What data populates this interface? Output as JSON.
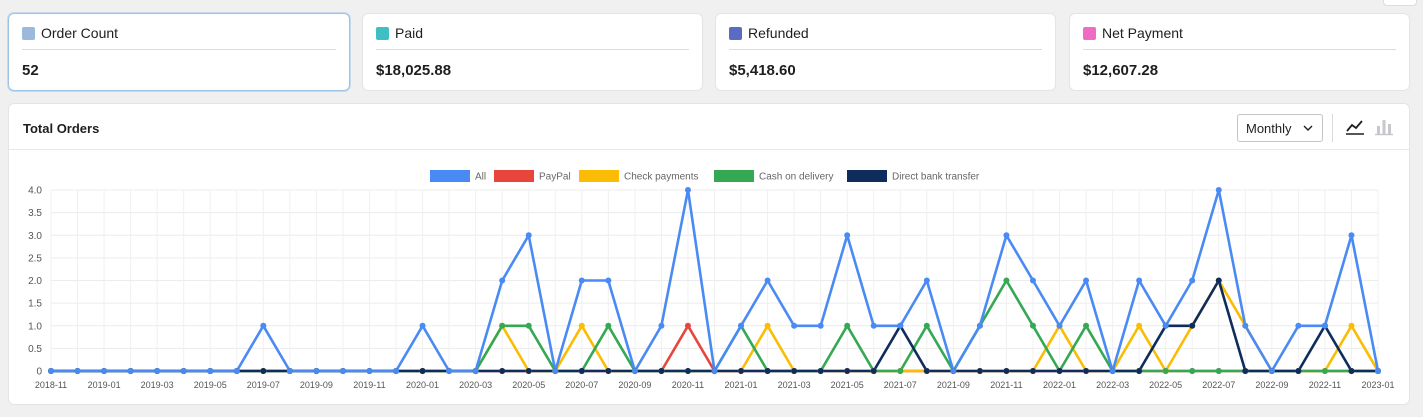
{
  "summary": [
    {
      "label": "Order Count",
      "value": "52",
      "color": "#9bb8dd",
      "active": true
    },
    {
      "label": "Paid",
      "value": "$18,025.88",
      "color": "#3fbfc4",
      "active": false
    },
    {
      "label": "Refunded",
      "value": "$5,418.60",
      "color": "#5a6bc4",
      "active": false
    },
    {
      "label": "Net Payment",
      "value": "$12,607.28",
      "color": "#f06cc4",
      "active": false
    }
  ],
  "panel": {
    "title": "Total Orders",
    "interval": "Monthly",
    "chart_type_options": [
      "line-chart-icon",
      "bar-chart-icon"
    ],
    "selected_chart_type": "line"
  },
  "chart_data": {
    "type": "line",
    "x": [
      "2018-11",
      "2018-12",
      "2019-01",
      "2019-02",
      "2019-03",
      "2019-04",
      "2019-05",
      "2019-06",
      "2019-07",
      "2019-08",
      "2019-09",
      "2019-10",
      "2019-11",
      "2019-12",
      "2020-01",
      "2020-02",
      "2020-03",
      "2020-04",
      "2020-05",
      "2020-06",
      "2020-07",
      "2020-08",
      "2020-09",
      "2020-10",
      "2020-11",
      "2020-12",
      "2021-01",
      "2021-02",
      "2021-03",
      "2021-04",
      "2021-05",
      "2021-06",
      "2021-07",
      "2021-08",
      "2021-09",
      "2021-10",
      "2021-11",
      "2021-12",
      "2022-01",
      "2022-02",
      "2022-03",
      "2022-04",
      "2022-05",
      "2022-06",
      "2022-07",
      "2022-08",
      "2022-09",
      "2022-10",
      "2022-11",
      "2022-12",
      "2023-01"
    ],
    "xticks": [
      "2018-11",
      "2019-01",
      "2019-03",
      "2019-05",
      "2019-07",
      "2019-09",
      "2019-11",
      "2020-01",
      "2020-03",
      "2020-05",
      "2020-07",
      "2020-09",
      "2020-11",
      "2021-01",
      "2021-03",
      "2021-05",
      "2021-07",
      "2021-09",
      "2021-11",
      "2022-01",
      "2022-03",
      "2022-05",
      "2022-07",
      "2022-09",
      "2022-11",
      "2023-01"
    ],
    "yticks": [
      "0",
      "0.5",
      "1.0",
      "1.5",
      "2.0",
      "2.5",
      "3.0",
      "3.5",
      "4.0"
    ],
    "ylim": [
      0,
      4
    ],
    "grid": true,
    "legend_position": "top",
    "series": [
      {
        "name": "All",
        "color": "#4a8af4",
        "values": [
          0,
          0,
          0,
          0,
          0,
          0,
          0,
          0,
          1,
          0,
          0,
          0,
          0,
          0,
          1,
          0,
          0,
          2,
          3,
          0,
          2,
          2,
          0,
          1,
          4,
          0,
          1,
          2,
          1,
          1,
          3,
          1,
          1,
          2,
          0,
          1,
          3,
          2,
          1,
          2,
          0,
          2,
          1,
          2,
          4,
          1,
          0,
          1,
          1,
          3,
          0
        ]
      },
      {
        "name": "PayPal",
        "color": "#e8453c",
        "values": [
          0,
          0,
          0,
          0,
          0,
          0,
          0,
          0,
          0,
          0,
          0,
          0,
          0,
          0,
          0,
          0,
          0,
          0,
          0,
          0,
          0,
          0,
          0,
          0,
          1,
          0,
          0,
          0,
          0,
          0,
          0,
          0,
          0,
          0,
          0,
          0,
          0,
          0,
          0,
          0,
          0,
          0,
          0,
          0,
          0,
          0,
          0,
          0,
          0,
          0,
          0
        ]
      },
      {
        "name": "Check payments",
        "color": "#fbbc04",
        "values": [
          0,
          0,
          0,
          0,
          0,
          0,
          0,
          0,
          0,
          0,
          0,
          0,
          0,
          0,
          0,
          0,
          0,
          1,
          0,
          0,
          1,
          0,
          0,
          0,
          0,
          0,
          0,
          1,
          0,
          0,
          0,
          0,
          0,
          0,
          0,
          0,
          0,
          0,
          1,
          0,
          0,
          1,
          0,
          1,
          2,
          1,
          0,
          0,
          0,
          1,
          0
        ]
      },
      {
        "name": "Cash on delivery",
        "color": "#34a853",
        "values": [
          0,
          0,
          0,
          0,
          0,
          0,
          0,
          0,
          0,
          0,
          0,
          0,
          0,
          0,
          0,
          0,
          0,
          1,
          1,
          0,
          0,
          1,
          0,
          0,
          0,
          0,
          1,
          0,
          0,
          0,
          1,
          0,
          0,
          1,
          0,
          1,
          2,
          1,
          0,
          1,
          0,
          0,
          0,
          0,
          0,
          0,
          0,
          0,
          0,
          0,
          0
        ]
      },
      {
        "name": "Direct bank transfer",
        "color": "#0f2d5c",
        "values": [
          0,
          0,
          0,
          0,
          0,
          0,
          0,
          0,
          0,
          0,
          0,
          0,
          0,
          0,
          0,
          0,
          0,
          0,
          0,
          0,
          0,
          0,
          0,
          0,
          0,
          0,
          0,
          0,
          0,
          0,
          0,
          0,
          1,
          0,
          0,
          0,
          0,
          0,
          0,
          0,
          0,
          0,
          1,
          1,
          2,
          0,
          0,
          0,
          1,
          0,
          0
        ]
      }
    ]
  }
}
